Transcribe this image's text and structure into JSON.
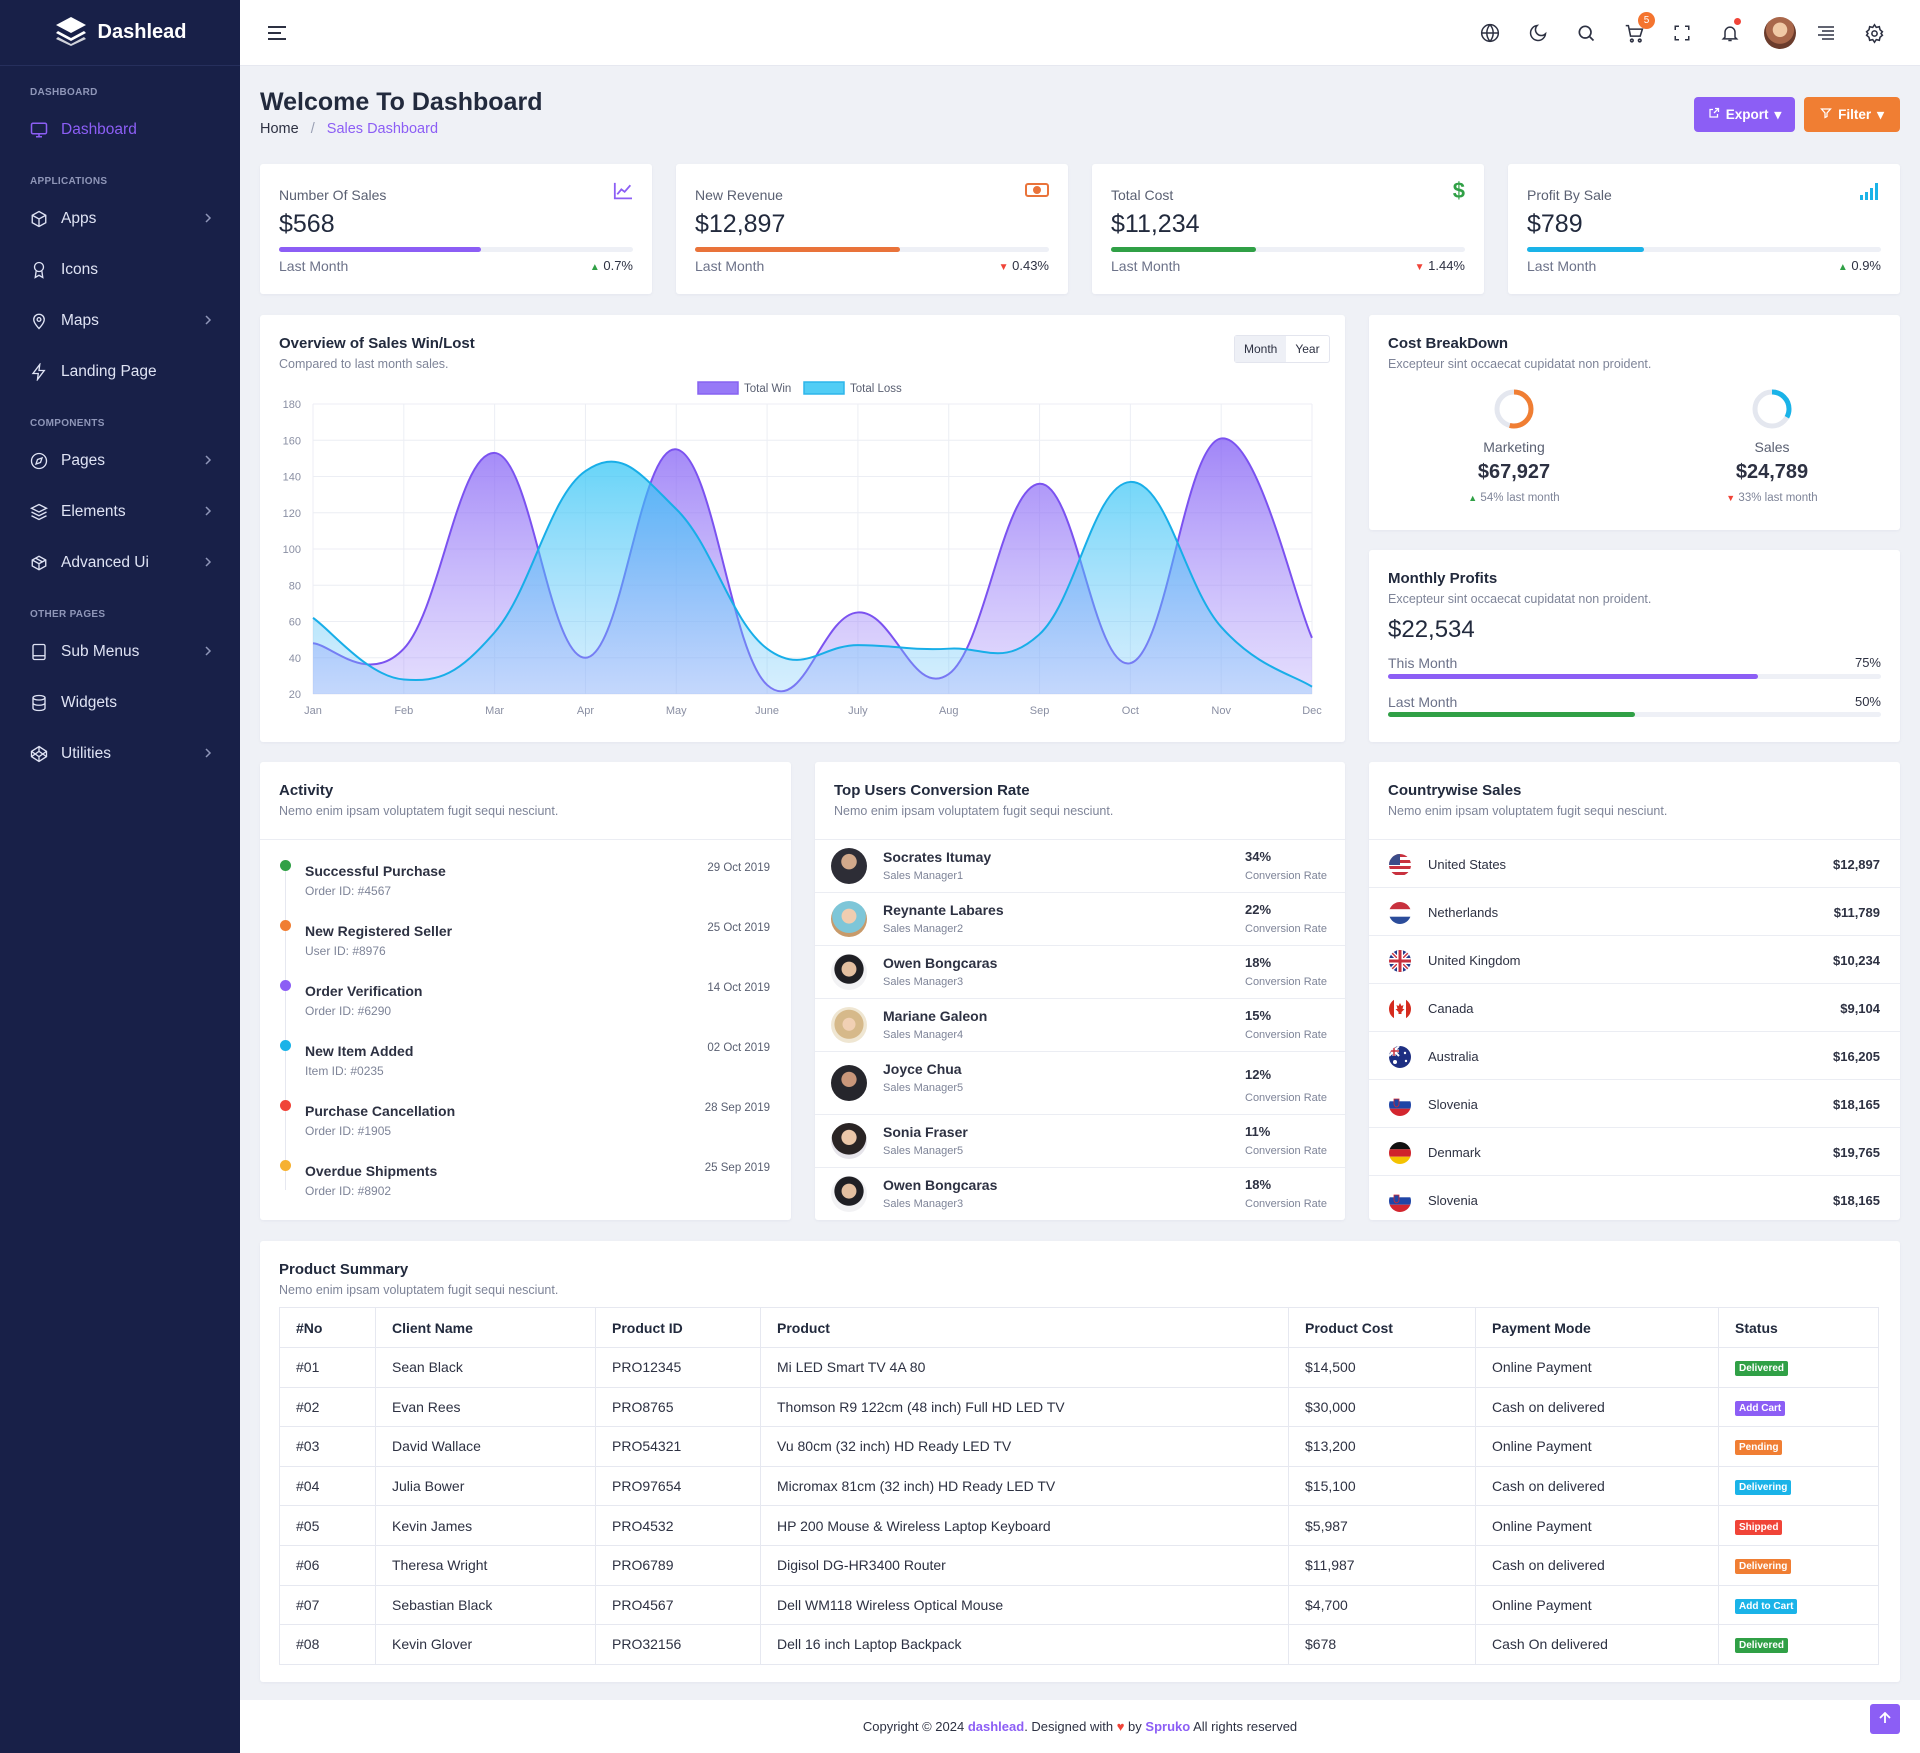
{
  "brand": {
    "name": "Dashlead"
  },
  "sidebar": {
    "sections": [
      {
        "title": "DASHBOARD",
        "items": [
          {
            "label": "Dashboard",
            "icon": "monitor-icon"
          }
        ]
      },
      {
        "title": "APPLICATIONS",
        "items": [
          {
            "label": "Apps",
            "icon": "cube-icon"
          },
          {
            "label": "Icons",
            "icon": "award-icon"
          },
          {
            "label": "Maps",
            "icon": "map-pin-icon"
          },
          {
            "label": "Landing Page",
            "icon": "bolt-icon"
          }
        ]
      },
      {
        "title": "COMPONENTS",
        "items": [
          {
            "label": "Pages",
            "icon": "compass-icon"
          },
          {
            "label": "Elements",
            "icon": "layers-icon"
          },
          {
            "label": "Advanced Ui",
            "icon": "box-icon"
          }
        ]
      },
      {
        "title": "OTHER PAGES",
        "items": [
          {
            "label": "Sub Menus",
            "icon": "tablet-icon"
          },
          {
            "label": "Widgets",
            "icon": "database-icon"
          },
          {
            "label": "Utilities",
            "icon": "codepen-icon"
          }
        ]
      }
    ]
  },
  "topbar": {
    "cart_count": "5"
  },
  "header": {
    "title": "Welcome To Dashboard",
    "crumb_home": "Home",
    "crumb_sep": "/",
    "crumb_current": "Sales Dashboard",
    "export_label": "Export",
    "filter_label": "Filter"
  },
  "stats": [
    {
      "label": "Number Of Sales",
      "value": "$568",
      "foot": "Last Month",
      "change": "0.7%",
      "direction": "up",
      "progress": 0.57,
      "color": "#8c5ef5",
      "icon": "trend-chart-icon"
    },
    {
      "label": "New Revenue",
      "value": "$12,897",
      "foot": "Last Month",
      "change": "0.43%",
      "direction": "down",
      "progress": 0.58,
      "color": "#e9733a",
      "icon": "money-icon"
    },
    {
      "label": "Total Cost",
      "value": "$11,234",
      "foot": "Last Month",
      "change": "1.44%",
      "direction": "down",
      "progress": 0.41,
      "color": "#30a046",
      "icon": "dollar-icon"
    },
    {
      "label": "Profit By Sale",
      "value": "$789",
      "foot": "Last Month",
      "change": "0.9%",
      "direction": "up",
      "progress": 0.33,
      "color": "#1ab3e8",
      "icon": "signal-icon"
    }
  ],
  "overview": {
    "title": "Overview of Sales Win/Lost",
    "subtitle": "Compared to last month sales.",
    "toggle": [
      "Month",
      "Year"
    ]
  },
  "chart_data": {
    "type": "area",
    "categories": [
      "Jan",
      "Feb",
      "Mar",
      "Apr",
      "May",
      "June",
      "July",
      "Aug",
      "Sep",
      "Oct",
      "Nov",
      "Dec"
    ],
    "series": [
      {
        "name": "Total Win",
        "values": [
          48,
          45,
          153,
          40,
          155,
          25,
          65,
          31,
          136,
          37,
          161,
          51
        ],
        "color": "#8c6bf7"
      },
      {
        "name": "Total Loss",
        "values": [
          62,
          28,
          54,
          143,
          122,
          45,
          47,
          45,
          53,
          137,
          57,
          24
        ],
        "color": "#3fc8f4"
      }
    ],
    "ylim": [
      20,
      180
    ],
    "yticks": [
      180,
      160,
      140,
      120,
      100,
      80,
      60,
      40,
      20
    ],
    "legend": "top-center",
    "grid": true
  },
  "cost": {
    "title": "Cost BreakDown",
    "subtitle": "Excepteur sint occaecat cupidatat non proident.",
    "items": [
      {
        "label": "Marketing",
        "value": "$67,927",
        "note": "54% last month",
        "direction": "up",
        "ratio": 0.54,
        "color": "#f07e33"
      },
      {
        "label": "Sales",
        "value": "$24,789",
        "note": "33% last month",
        "direction": "down",
        "ratio": 0.33,
        "color": "#1ab3e8"
      }
    ]
  },
  "profits": {
    "title": "Monthly Profits",
    "subtitle": "Excepteur sint occaecat cupidatat non proident.",
    "value": "$22,534",
    "bars": [
      {
        "label": "This Month",
        "pct": "75%",
        "ratio": 0.75,
        "color": "#8c5ef5"
      },
      {
        "label": "Last Month",
        "pct": "50%",
        "ratio": 0.5,
        "color": "#30a046"
      }
    ]
  },
  "activity": {
    "title": "Activity",
    "subtitle": "Nemo enim ipsam voluptatem fugit sequi nesciunt.",
    "items": [
      {
        "title": "Successful Purchase",
        "sub": "Order ID: #4567",
        "date": "29 Oct 2019",
        "color": "#30a046"
      },
      {
        "title": "New Registered Seller",
        "sub": "User ID: #8976",
        "date": "25 Oct 2019",
        "color": "#f07e33"
      },
      {
        "title": "Order Verification",
        "sub": "Order ID: #6290",
        "date": "14 Oct 2019",
        "color": "#8c5ef5"
      },
      {
        "title": "New Item Added",
        "sub": "Item ID: #0235",
        "date": "02 Oct 2019",
        "color": "#1ab3e8"
      },
      {
        "title": "Purchase Cancellation",
        "sub": "Order ID: #1905",
        "date": "28 Sep 2019",
        "color": "#f04438"
      },
      {
        "title": "Overdue Shipments",
        "sub": "Order ID: #8902",
        "date": "25 Sep 2019",
        "color": "#f6b130"
      }
    ]
  },
  "users": {
    "title": "Top Users Conversion Rate",
    "subtitle": "Nemo enim ipsam voluptatem fugit sequi nesciunt.",
    "items": [
      {
        "name": "Socrates Itumay",
        "role": "Sales Manager1",
        "pct": "34%",
        "cr": "Conversion Rate"
      },
      {
        "name": "Reynante Labares",
        "role": "Sales Manager2",
        "pct": "22%",
        "cr": "Conversion Rate"
      },
      {
        "name": "Owen Bongcaras",
        "role": "Sales Manager3",
        "pct": "18%",
        "cr": "Conversion Rate"
      },
      {
        "name": "Mariane Galeon",
        "role": "Sales Manager4",
        "pct": "15%",
        "cr": "Conversion Rate"
      },
      {
        "name": "Joyce Chua",
        "role": "Sales Manager5",
        "pct": "12%",
        "cr": "Conversion Rate"
      },
      {
        "name": "Sonia Fraser",
        "role": "Sales Manager5",
        "pct": "11%",
        "cr": "Conversion Rate"
      },
      {
        "name": "Owen Bongcaras",
        "role": "Sales Manager3",
        "pct": "18%",
        "cr": "Conversion Rate"
      }
    ]
  },
  "countries": {
    "title": "Countrywise Sales",
    "subtitle": "Nemo enim ipsam voluptatem fugit sequi nesciunt.",
    "items": [
      {
        "name": "United States",
        "value": "$12,897",
        "flag": "us-flag-icon"
      },
      {
        "name": "Netherlands",
        "value": "$11,789",
        "flag": "nl-flag-icon"
      },
      {
        "name": "United Kingdom",
        "value": "$10,234",
        "flag": "uk-flag-icon"
      },
      {
        "name": "Canada",
        "value": "$9,104",
        "flag": "ca-flag-icon"
      },
      {
        "name": "Australia",
        "value": "$16,205",
        "flag": "au-flag-icon"
      },
      {
        "name": "Slovenia",
        "value": "$18,165",
        "flag": "si-flag-icon"
      },
      {
        "name": "Denmark",
        "value": "$19,765",
        "flag": "de-flag-icon"
      },
      {
        "name": "Slovenia",
        "value": "$18,165",
        "flag": "si-flag-icon"
      }
    ]
  },
  "products": {
    "title": "Product Summary",
    "subtitle": "Nemo enim ipsam voluptatem fugit sequi nesciunt.",
    "columns": [
      "#No",
      "Client Name",
      "Product ID",
      "Product",
      "Product Cost",
      "Payment Mode",
      "Status"
    ],
    "rows": [
      {
        "no": "#01",
        "client": "Sean Black",
        "pid": "PRO12345",
        "product": "Mi LED Smart TV 4A 80",
        "cost": "$14,500",
        "mode": "Online Payment",
        "status": "Delivered",
        "status_color": "#30a046"
      },
      {
        "no": "#02",
        "client": "Evan Rees",
        "pid": "PRO8765",
        "product": "Thomson R9 122cm (48 inch) Full HD LED TV",
        "cost": "$30,000",
        "mode": "Cash on delivered",
        "status": "Add Cart",
        "status_color": "#8c5ef5"
      },
      {
        "no": "#03",
        "client": "David Wallace",
        "pid": "PRO54321",
        "product": "Vu 80cm (32 inch) HD Ready LED TV",
        "cost": "$13,200",
        "mode": "Online Payment",
        "status": "Pending",
        "status_color": "#f07e33"
      },
      {
        "no": "#04",
        "client": "Julia Bower",
        "pid": "PRO97654",
        "product": "Micromax 81cm (32 inch) HD Ready LED TV",
        "cost": "$15,100",
        "mode": "Cash on delivered",
        "status": "Delivering",
        "status_color": "#1ab3e8"
      },
      {
        "no": "#05",
        "client": "Kevin James",
        "pid": "PRO4532",
        "product": "HP 200 Mouse & Wireless Laptop Keyboard",
        "cost": "$5,987",
        "mode": "Online Payment",
        "status": "Shipped",
        "status_color": "#f04438"
      },
      {
        "no": "#06",
        "client": "Theresa Wright",
        "pid": "PRO6789",
        "product": "Digisol DG-HR3400 Router",
        "cost": "$11,987",
        "mode": "Cash on delivered",
        "status": "Delivering",
        "status_color": "#f07e33"
      },
      {
        "no": "#07",
        "client": "Sebastian Black",
        "pid": "PRO4567",
        "product": "Dell WM118 Wireless Optical Mouse",
        "cost": "$4,700",
        "mode": "Online Payment",
        "status": "Add to Cart",
        "status_color": "#1ab3e8"
      },
      {
        "no": "#08",
        "client": "Kevin Glover",
        "pid": "PRO32156",
        "product": "Dell 16 inch Laptop Backpack",
        "cost": "$678",
        "mode": "Cash On delivered",
        "status": "Delivered",
        "status_color": "#30a046"
      }
    ]
  },
  "footer": {
    "prefix": "Copyright © 2024",
    "site": "dashlead",
    "designed": ". Designed with",
    "by": "by",
    "company": "Spruko",
    "rights": "All rights reserved"
  }
}
